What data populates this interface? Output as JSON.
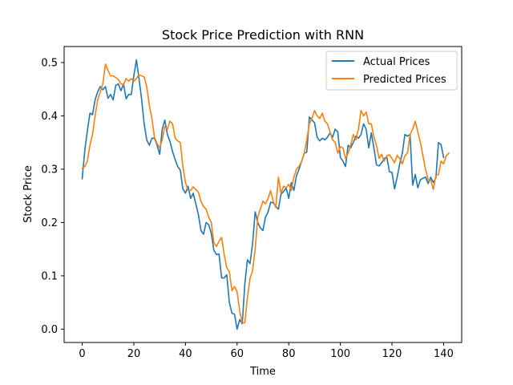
{
  "chart_data": {
    "type": "line",
    "title": "Stock Price Prediction with RNN",
    "xlabel": "Time",
    "ylabel": "Stock Price",
    "xlim": [
      -7,
      147
    ],
    "ylim": [
      -0.025,
      0.53
    ],
    "xticks": [
      0,
      20,
      40,
      60,
      80,
      100,
      120,
      140
    ],
    "yticks": [
      0.0,
      0.1,
      0.2,
      0.3,
      0.4,
      0.5
    ],
    "ytick_labels": [
      "0.0",
      "0.1",
      "0.2",
      "0.3",
      "0.4",
      "0.5"
    ],
    "grid": false,
    "legend_position": "top-right",
    "series": [
      {
        "name": "Actual Prices",
        "color": "#1f77b4",
        "x_start": 0,
        "values": [
          0.282,
          0.335,
          0.372,
          0.405,
          0.402,
          0.43,
          0.445,
          0.455,
          0.449,
          0.455,
          0.433,
          0.44,
          0.43,
          0.457,
          0.46,
          0.447,
          0.46,
          0.432,
          0.44,
          0.44,
          0.475,
          0.505,
          0.47,
          0.432,
          0.385,
          0.355,
          0.345,
          0.358,
          0.358,
          0.345,
          0.328,
          0.375,
          0.392,
          0.365,
          0.352,
          0.333,
          0.318,
          0.305,
          0.298,
          0.263,
          0.255,
          0.268,
          0.245,
          0.255,
          0.235,
          0.215,
          0.185,
          0.178,
          0.2,
          0.196,
          0.18,
          0.148,
          0.14,
          0.141,
          0.096,
          0.096,
          0.102,
          0.05,
          0.03,
          0.028,
          0.0,
          0.018,
          0.01,
          0.085,
          0.13,
          0.123,
          0.16,
          0.22,
          0.2,
          0.19,
          0.185,
          0.21,
          0.22,
          0.238,
          0.237,
          0.23,
          0.225,
          0.253,
          0.258,
          0.265,
          0.245,
          0.275,
          0.26,
          0.288,
          0.3,
          0.315,
          0.33,
          0.332,
          0.398,
          0.392,
          0.387,
          0.36,
          0.353,
          0.358,
          0.355,
          0.36,
          0.368,
          0.36,
          0.375,
          0.37,
          0.322,
          0.315,
          0.305,
          0.345,
          0.34,
          0.35,
          0.362,
          0.358,
          0.365,
          0.385,
          0.375,
          0.34,
          0.368,
          0.34,
          0.308,
          0.306,
          0.312,
          0.32,
          0.323,
          0.295,
          0.294,
          0.263,
          0.285,
          0.31,
          0.33,
          0.365,
          0.362,
          0.365,
          0.27,
          0.29,
          0.265,
          0.28,
          0.283,
          0.285,
          0.273,
          0.285,
          0.275,
          0.283,
          0.35,
          0.346,
          0.322
        ]
      },
      {
        "name": "Predicted Prices",
        "color": "#ff7f0e",
        "x_start": 0,
        "values": [
          0.302,
          0.305,
          0.315,
          0.345,
          0.365,
          0.4,
          0.43,
          0.445,
          0.46,
          0.497,
          0.485,
          0.475,
          0.475,
          0.472,
          0.468,
          0.46,
          0.458,
          0.47,
          0.465,
          0.47,
          0.465,
          0.47,
          0.477,
          0.475,
          0.473,
          0.455,
          0.42,
          0.395,
          0.36,
          0.348,
          0.34,
          0.355,
          0.38,
          0.375,
          0.39,
          0.385,
          0.358,
          0.353,
          0.35,
          0.305,
          0.275,
          0.26,
          0.26,
          0.267,
          0.262,
          0.257,
          0.24,
          0.23,
          0.225,
          0.21,
          0.2,
          0.162,
          0.155,
          0.165,
          0.172,
          0.14,
          0.115,
          0.108,
          0.072,
          0.08,
          0.07,
          0.034,
          0.012,
          0.012,
          0.06,
          0.095,
          0.11,
          0.15,
          0.21,
          0.225,
          0.24,
          0.235,
          0.245,
          0.26,
          0.24,
          0.228,
          0.285,
          0.255,
          0.268,
          0.265,
          0.272,
          0.26,
          0.285,
          0.3,
          0.305,
          0.315,
          0.33,
          0.355,
          0.385,
          0.395,
          0.41,
          0.4,
          0.395,
          0.405,
          0.39,
          0.385,
          0.37,
          0.355,
          0.35,
          0.33,
          0.342,
          0.34,
          0.32,
          0.33,
          0.345,
          0.365,
          0.355,
          0.375,
          0.41,
          0.4,
          0.407,
          0.385,
          0.385,
          0.36,
          0.345,
          0.32,
          0.328,
          0.315,
          0.325,
          0.327,
          0.32,
          0.312,
          0.326,
          0.32,
          0.31,
          0.325,
          0.33,
          0.365,
          0.375,
          0.39,
          0.37,
          0.35,
          0.325,
          0.3,
          0.28,
          0.28,
          0.262,
          0.288,
          0.29,
          0.315,
          0.31,
          0.325,
          0.33
        ]
      }
    ]
  }
}
